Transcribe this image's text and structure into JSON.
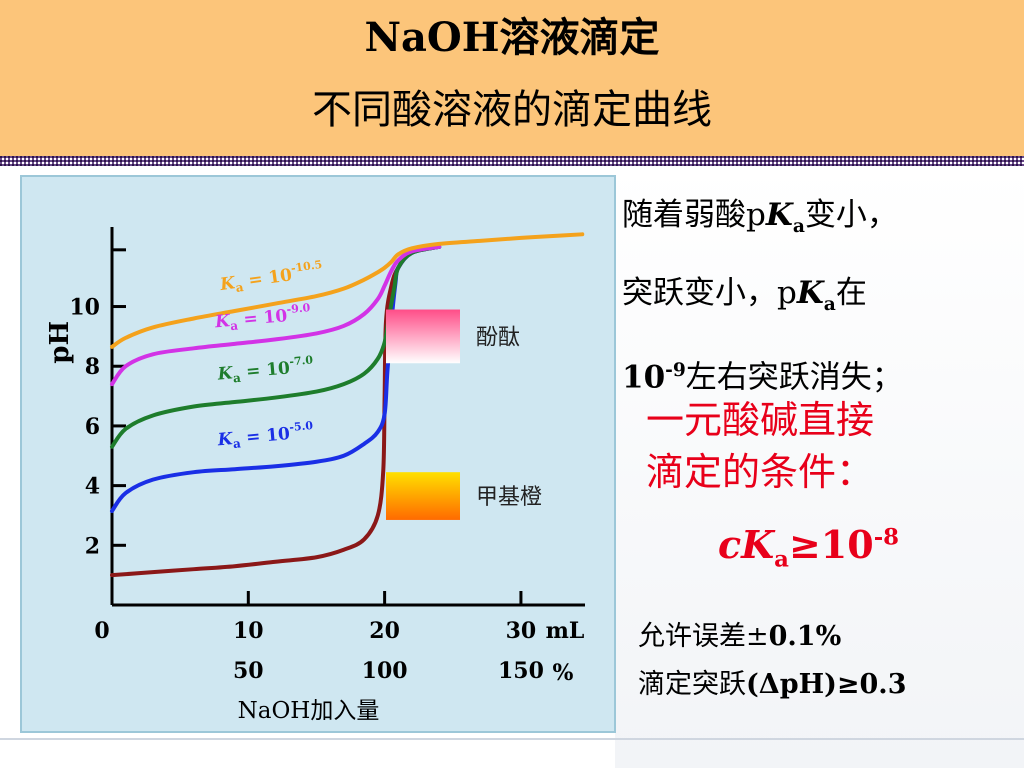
{
  "header": {
    "title_line1": "NaOH溶液滴定",
    "title_line2": "不同酸溶液的滴定曲线"
  },
  "side_text": {
    "line1_a": "随着弱酸p",
    "line1_k": "K",
    "line1_sub": "a",
    "line1_b": "变小，",
    "line2_a": "突跃变小，p",
    "line2_k": "K",
    "line2_sub": "a",
    "line2_b": "在",
    "line3_a": "10",
    "line3_sup": "-9",
    "line3_b": "左右突跃消失；",
    "cond_line1": "一元酸碱直接",
    "cond_line2": "滴定的条件：",
    "formula_c": "c",
    "formula_k": "K",
    "formula_sub": "a",
    "formula_rest": "≥10",
    "formula_sup": "-8",
    "note1_a": "允许误差±",
    "note1_b": "0.1%",
    "note2_a": "滴定突跃",
    "note2_b": "(ΔpH)≥0.3"
  },
  "colors": {
    "header_bg": "#fcc57a",
    "accent_red": "#e8001a"
  },
  "chart_data": {
    "type": "line",
    "xlabel": "NaOH加入量",
    "ylabel": "pH",
    "x_unit_label": "mL",
    "x_percent_label": "%",
    "xlim": [
      0,
      35
    ],
    "ylim": [
      0,
      13
    ],
    "x_ticks": [
      0,
      10,
      20,
      30
    ],
    "x_tick_labels": [
      "0",
      "10",
      "20",
      "30"
    ],
    "x_percent_ticks": [
      "50",
      "100",
      "150"
    ],
    "y_ticks": [
      2,
      4,
      6,
      8,
      10
    ],
    "y_tick_labels": [
      "2",
      "4",
      "6",
      "8",
      "10"
    ],
    "grid": false,
    "series": [
      {
        "name": "Ka = 10^-10.5",
        "label_base": "K",
        "label_sub": "a",
        "label_eq": " = 10",
        "label_exp": "-10.5",
        "color": "#f4a21c",
        "x": [
          0,
          1,
          3,
          6,
          9,
          12,
          15,
          17,
          18.5,
          19.5,
          20,
          20.5,
          21,
          22,
          24,
          27,
          30,
          33,
          34.5
        ],
        "y": [
          8.65,
          8.95,
          9.3,
          9.6,
          9.85,
          10.1,
          10.35,
          10.6,
          10.9,
          11.15,
          11.3,
          11.5,
          11.75,
          11.95,
          12.1,
          12.2,
          12.3,
          12.38,
          12.42
        ]
      },
      {
        "name": "Ka = 10^-9.0",
        "label_base": "K",
        "label_sub": "a",
        "label_eq": " = 10",
        "label_exp": "-9.0",
        "color": "#d233e6",
        "x": [
          0,
          1,
          3,
          6,
          9,
          12,
          15,
          17,
          18.5,
          19.5,
          20,
          20.5,
          21,
          22,
          24
        ],
        "y": [
          7.4,
          8.0,
          8.4,
          8.6,
          8.75,
          8.9,
          9.1,
          9.35,
          9.75,
          10.25,
          10.7,
          11.2,
          11.55,
          11.85,
          12.0
        ]
      },
      {
        "name": "Ka = 10^-7.0",
        "label_base": "K",
        "label_sub": "a",
        "label_eq": " = 10",
        "label_exp": "-7.0",
        "color": "#1e7d2c",
        "x": [
          0,
          1,
          3,
          6,
          9,
          12,
          15,
          17,
          18.5,
          19.5,
          20,
          20.3,
          20.7,
          21,
          22,
          24
        ],
        "y": [
          5.3,
          5.9,
          6.35,
          6.65,
          6.8,
          6.95,
          7.15,
          7.4,
          7.75,
          8.25,
          8.8,
          9.6,
          10.6,
          11.3,
          11.8,
          12.0
        ]
      },
      {
        "name": "Ka = 10^-5.0",
        "label_base": "K",
        "label_sub": "a",
        "label_eq": " = 10",
        "label_exp": "-5.0",
        "color": "#1a2fe6",
        "x": [
          0,
          1,
          3,
          6,
          9,
          12,
          15,
          17,
          18.5,
          19.5,
          20,
          20.2,
          20.5,
          20.8,
          21,
          22,
          24
        ],
        "y": [
          3.15,
          3.75,
          4.2,
          4.45,
          4.55,
          4.65,
          4.8,
          5.0,
          5.4,
          5.8,
          6.4,
          7.8,
          9.5,
          10.8,
          11.3,
          11.8,
          12.0
        ]
      },
      {
        "name": "strong acid",
        "color": "#8b1818",
        "x": [
          0,
          3,
          6,
          9,
          12,
          15,
          17,
          18.5,
          19.5,
          19.9,
          20,
          20.1,
          20.5,
          21,
          22,
          24
        ],
        "y": [
          1.0,
          1.1,
          1.2,
          1.3,
          1.45,
          1.6,
          1.85,
          2.2,
          3.0,
          4.5,
          7.0,
          9.5,
          10.7,
          11.3,
          11.8,
          12.0
        ]
      }
    ],
    "indicators": [
      {
        "name": "酚酞",
        "colors": [
          "#ff4d88",
          "#ffffff"
        ]
      },
      {
        "name": "甲基橙",
        "colors": [
          "#ffe000",
          "#ff6a00"
        ]
      }
    ]
  }
}
